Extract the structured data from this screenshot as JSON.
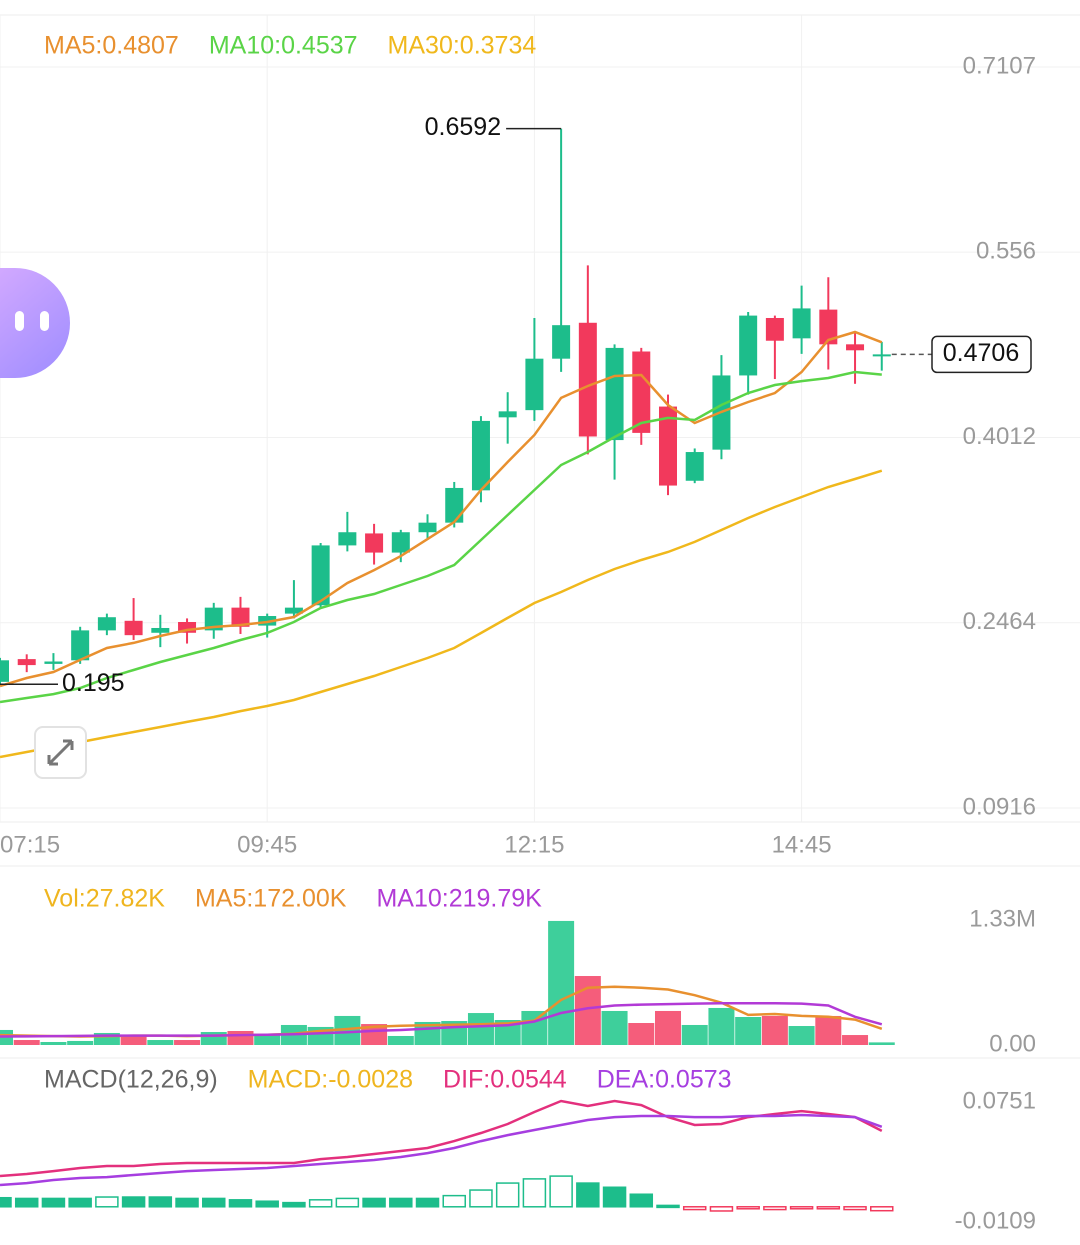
{
  "chart_data": [
    {
      "type": "candlestick",
      "categories": [
        "07:15",
        null,
        null,
        null,
        null,
        null,
        null,
        null,
        null,
        null,
        "09:45",
        null,
        null,
        null,
        null,
        null,
        null,
        null,
        null,
        null,
        "12:15",
        null,
        null,
        null,
        null,
        null,
        null,
        null,
        null,
        null,
        "14:45",
        null,
        null,
        null
      ],
      "open": [
        0.197,
        0.216,
        0.212,
        0.215,
        0.24,
        0.248,
        0.238,
        0.247,
        0.24,
        0.259,
        0.244,
        0.254,
        0.261,
        0.311,
        0.321,
        0.305,
        0.322,
        0.33,
        0.357,
        0.418,
        0.424,
        0.467,
        0.497,
        0.399,
        0.473,
        0.427,
        0.365,
        0.391,
        0.453,
        0.501,
        0.484,
        0.508,
        0.479,
        0.47
      ],
      "high": [
        0.217,
        0.22,
        0.221,
        0.243,
        0.254,
        0.267,
        0.253,
        0.25,
        0.263,
        0.268,
        0.254,
        0.282,
        0.313,
        0.339,
        0.329,
        0.324,
        0.337,
        0.364,
        0.419,
        0.439,
        0.501,
        0.6592,
        0.545,
        0.479,
        0.476,
        0.437,
        0.392,
        0.47,
        0.506,
        0.503,
        0.528,
        0.535,
        0.49,
        0.481
      ],
      "low": [
        0.195,
        0.2051,
        0.207,
        0.212,
        0.236,
        0.232,
        0.226,
        0.229,
        0.233,
        0.237,
        0.234,
        0.25,
        0.258,
        0.306,
        0.295,
        0.297,
        0.317,
        0.326,
        0.347,
        0.396,
        0.415,
        0.456,
        0.387,
        0.366,
        0.395,
        0.353,
        0.363,
        0.383,
        0.437,
        0.45,
        0.471,
        0.458,
        0.446,
        0.457
      ],
      "close": [
        0.215,
        0.211,
        0.214,
        0.24,
        0.251,
        0.236,
        0.242,
        0.238,
        0.259,
        0.243,
        0.252,
        0.259,
        0.311,
        0.322,
        0.305,
        0.322,
        0.33,
        0.359,
        0.415,
        0.423,
        0.467,
        0.495,
        0.402,
        0.476,
        0.405,
        0.361,
        0.389,
        0.453,
        0.503,
        0.482,
        0.509,
        0.479,
        0.474,
        0.4706
      ],
      "up_color": "#1dbd8b",
      "down_color": "#f2395c",
      "series": [
        {
          "name": "MA5:0.4807",
          "color": "#e8902f",
          "values": [
            0.1935,
            0.2002,
            0.2052,
            0.2153,
            0.2253,
            0.2295,
            0.2353,
            0.2403,
            0.2428,
            0.2445,
            0.247,
            0.2512,
            0.2645,
            0.2796,
            0.2904,
            0.3021,
            0.3163,
            0.3305,
            0.3573,
            0.3807,
            0.4032,
            0.4342,
            0.4442,
            0.4525,
            0.4534,
            0.4283,
            0.4133,
            0.4225,
            0.4308,
            0.4383,
            0.4559,
            0.4826,
            0.4893,
            0.4807
          ]
        },
        {
          "name": "MA10:0.4537",
          "color": "#5ad447",
          "values": [
            0.1802,
            0.1835,
            0.1868,
            0.1919,
            0.2002,
            0.2069,
            0.2136,
            0.2194,
            0.2253,
            0.232,
            0.2379,
            0.247,
            0.2587,
            0.2654,
            0.2704,
            0.2779,
            0.2854,
            0.2946,
            0.3155,
            0.3364,
            0.3573,
            0.3782,
            0.389,
            0.4016,
            0.4133,
            0.4175,
            0.4158,
            0.4283,
            0.4383,
            0.445,
            0.4483,
            0.4509,
            0.4559,
            0.4537
          ]
        },
        {
          "name": "MA30:0.3734",
          "color": "#f0b81c",
          "values": [
            0.1342,
            0.1384,
            0.1426,
            0.1467,
            0.1509,
            0.1551,
            0.1593,
            0.1635,
            0.1676,
            0.1726,
            0.1768,
            0.1818,
            0.1885,
            0.1952,
            0.2019,
            0.2094,
            0.2169,
            0.2253,
            0.2378,
            0.2504,
            0.2629,
            0.2721,
            0.2821,
            0.2913,
            0.2988,
            0.3055,
            0.3139,
            0.3239,
            0.3339,
            0.3431,
            0.3514,
            0.3598,
            0.3665,
            0.3734
          ]
        }
      ],
      "ylim": [
        0.0916,
        0.7107
      ],
      "yticks": [
        0.7107,
        0.556,
        0.4012,
        0.2464,
        0.0916
      ],
      "grid": true
    },
    {
      "type": "bar",
      "name": "Vol:27.82K",
      "color": "#efb51f",
      "values": [
        160000,
        53000,
        32000,
        43000,
        128000,
        96000,
        53000,
        53000,
        138000,
        149000,
        106000,
        213000,
        192000,
        309000,
        223000,
        96000,
        245000,
        255000,
        340000,
        266000,
        362000,
        1320000,
        734000,
        362000,
        234000,
        362000,
        213000,
        394000,
        298000,
        309000,
        202000,
        309000,
        106000,
        27820
      ],
      "up_color": "#3ecf9b",
      "down_color": "#f55d7b",
      "series": [
        {
          "name": "MA5:172.00K",
          "color": "#e8902f",
          "values": [
            105000,
            100000,
            95000,
            90000,
            95000,
            100000,
            100000,
            95000,
            100000,
            105000,
            110000,
            120000,
            150000,
            170000,
            195000,
            205000,
            210000,
            215000,
            220000,
            230000,
            260000,
            480000,
            610000,
            620000,
            610000,
            590000,
            530000,
            450000,
            320000,
            330000,
            310000,
            300000,
            270000,
            172000
          ]
        },
        {
          "name": "MA10:219.79K",
          "color": "#b23ad6",
          "values": [
            90000,
            92000,
            95000,
            97000,
            100000,
            100000,
            100000,
            100000,
            100000,
            105000,
            110000,
            115000,
            125000,
            135000,
            150000,
            160000,
            175000,
            190000,
            200000,
            210000,
            250000,
            340000,
            390000,
            420000,
            430000,
            435000,
            440000,
            445000,
            445000,
            445000,
            440000,
            420000,
            300000,
            219790
          ]
        }
      ],
      "ylim": [
        0,
        1330000
      ],
      "yticks": [
        {
          "value": 1330000,
          "label": "1.33M"
        },
        {
          "value": 0,
          "label": "0.00"
        }
      ]
    },
    {
      "type": "macd",
      "title": "MACD(12,26,9)",
      "name": "MACD:-0.0028",
      "color": "#efb51f",
      "values": [
        0.0065,
        0.006,
        0.006,
        0.006,
        0.007,
        0.007,
        0.007,
        0.006,
        0.006,
        0.005,
        0.004,
        0.003,
        0.005,
        0.006,
        0.006,
        0.006,
        0.006,
        0.008,
        0.012,
        0.017,
        0.02,
        0.022,
        0.017,
        0.014,
        0.009,
        0.001,
        -0.002,
        -0.003,
        -0.001,
        -0.002,
        -0.001,
        -0.001,
        -0.002,
        -0.0028
      ],
      "up_color": "#1dbd8b",
      "down_color": "#f2395c",
      "series": [
        {
          "name": "DIF:0.0544",
          "color": "#e3307d",
          "values": [
            0.0221,
            0.0235,
            0.0256,
            0.0278,
            0.0292,
            0.0292,
            0.0307,
            0.0314,
            0.0314,
            0.0314,
            0.0314,
            0.0314,
            0.0342,
            0.0357,
            0.0378,
            0.04,
            0.0421,
            0.0471,
            0.0529,
            0.0593,
            0.0679,
            0.0758,
            0.0722,
            0.0758,
            0.0729,
            0.0643,
            0.0586,
            0.0593,
            0.0643,
            0.0665,
            0.0686,
            0.0665,
            0.0643,
            0.0544
          ]
        },
        {
          "name": "DEA:0.0573",
          "color": "#a63ee0",
          "values": [
            0.0156,
            0.017,
            0.0192,
            0.0206,
            0.0213,
            0.0228,
            0.0242,
            0.0256,
            0.0264,
            0.0271,
            0.0278,
            0.0292,
            0.0307,
            0.0321,
            0.0335,
            0.0357,
            0.0385,
            0.0421,
            0.0471,
            0.0514,
            0.055,
            0.0586,
            0.0622,
            0.0643,
            0.0651,
            0.0651,
            0.0643,
            0.0643,
            0.0651,
            0.0651,
            0.0658,
            0.0651,
            0.0643,
            0.0573
          ]
        }
      ],
      "ylim": [
        -0.0109,
        0.0751
      ],
      "yticks": [
        0.0751,
        -0.0109
      ]
    }
  ]
}
